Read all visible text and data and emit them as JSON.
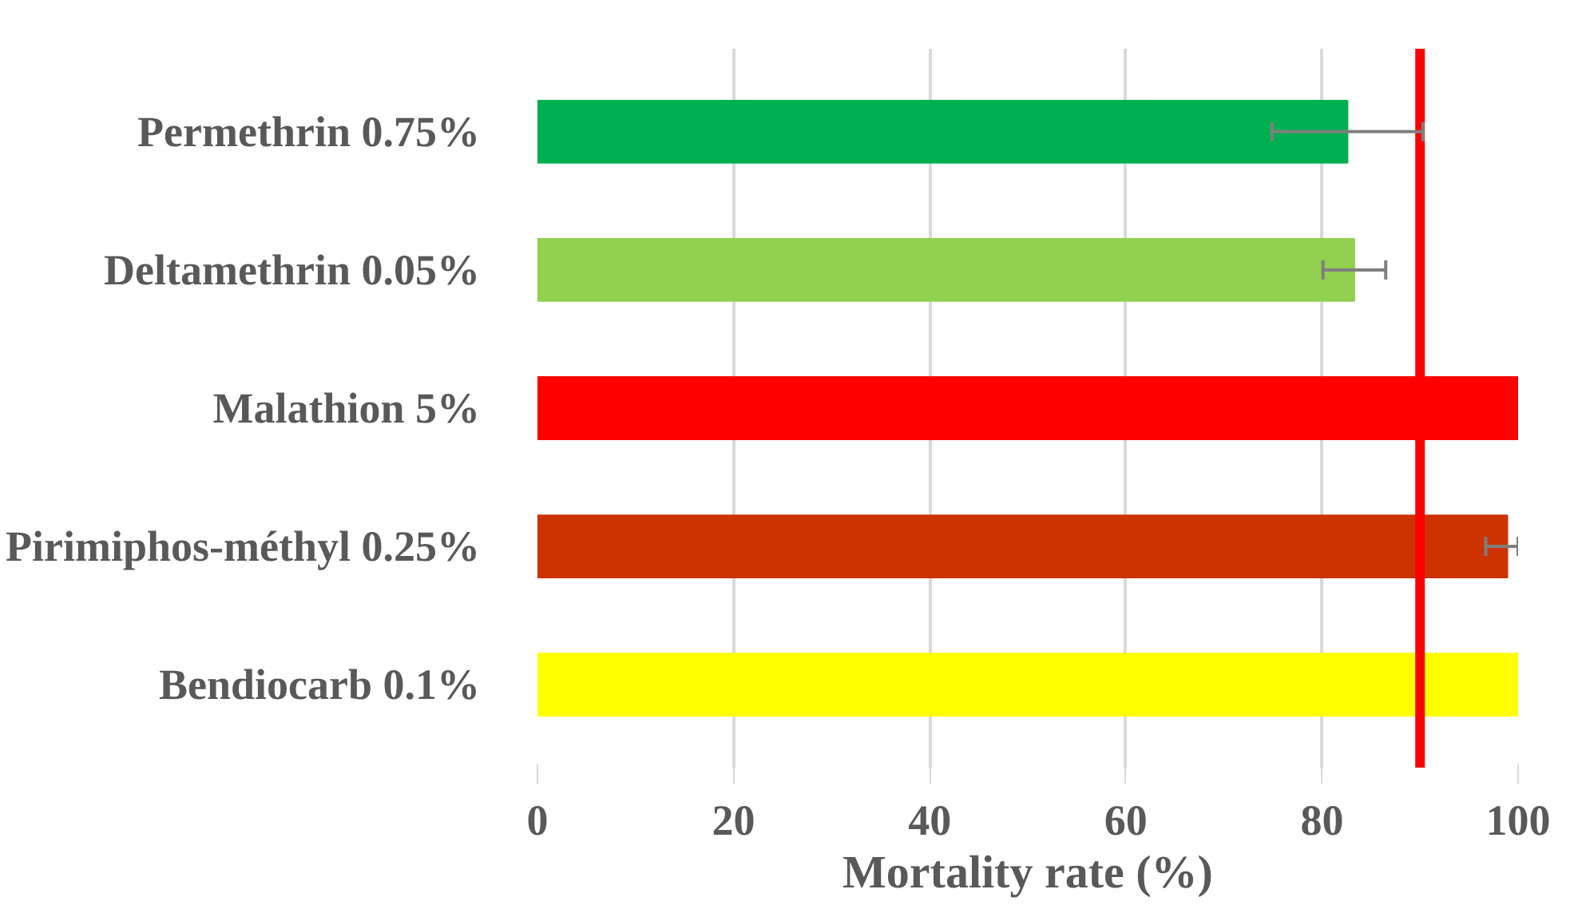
{
  "chart_data": {
    "type": "bar",
    "orientation": "horizontal",
    "xlabel": "Mortality rate (%)",
    "categories": [
      "Permethrin 0.75%",
      "Deltamethrin 0.05%",
      "Malathion 5%",
      "Pirimiphos-méthyl 0.25%",
      "Bendiocarb 0.1%"
    ],
    "values": [
      82.6,
      83.3,
      100,
      98.9,
      100
    ],
    "colors": [
      "#00b050",
      "#92d050",
      "#ff0000",
      "#cc3300",
      "#ffff00"
    ],
    "errors": [
      7.7,
      3.2,
      null,
      [
        96.7,
        100
      ],
      null
    ],
    "xlim": [
      0,
      100
    ],
    "xticks": [
      0,
      20,
      40,
      60,
      80,
      100
    ],
    "grid": "x",
    "ref_lines": [
      {
        "axis": "x",
        "value": 90,
        "color": "#ff0000"
      }
    ]
  }
}
